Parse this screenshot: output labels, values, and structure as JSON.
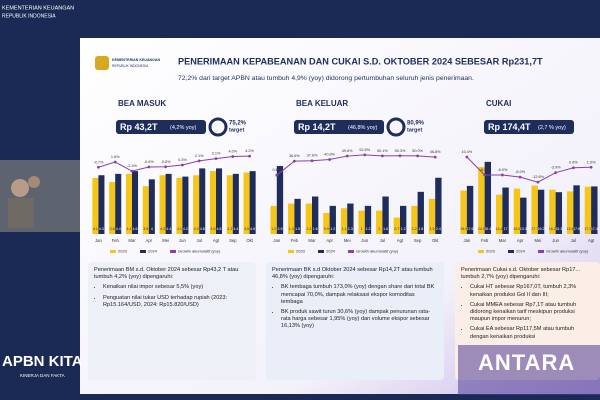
{
  "overlay": {
    "ministry": "KEMENTERIAN KEUANGAN",
    "republic": "REPUBLIK INDONESIA",
    "brand": "APBN KITA",
    "brand_sub": "KINERJA DAN FAKTA",
    "watermark": "ANTARA"
  },
  "header": {
    "logo_line1": "KEMENTERIAN KEUANGAN",
    "logo_line2": "REPUBLIK INDONESIA",
    "title": "PENERIMAAN KEPABEANAN DAN CUKAI S.D. OKTOBER 2024 SEBESAR Rp231,7T",
    "subtitle": "72,2% dari target APBN atau tumbuh 4,9% (yoy) didorong pertumbuhan seluruh jenis penerimaan."
  },
  "chart_data": [
    {
      "type": "bar",
      "title": "BEA MASUK",
      "headline": "Rp 43,2T",
      "growth": "(4,2% yoy)",
      "target": "75,2%",
      "target_label": "target",
      "categories": [
        "Jan",
        "Feb",
        "Mar",
        "Apr",
        "Mei",
        "Jun",
        "Jul",
        "Agt",
        "Sep",
        "Okt"
      ],
      "ylim": [
        0,
        6
      ],
      "y2lim": [
        -30,
        6
      ],
      "series": [
        {
          "name": "2023",
          "color": "#f5c518",
          "values": [
            4.1,
            3.8,
            4.4,
            3.5,
            4.3,
            4.1,
            4.3,
            4.6,
            4.3,
            4.5
          ]
        },
        {
          "name": "2024",
          "color": "#1f2d5c",
          "values": [
            4.3,
            4.4,
            4.6,
            4.0,
            4.4,
            4.2,
            4.8,
            4.8,
            4.4,
            4.6
          ]
        },
        {
          "name": "Growth akumulatif (yoy)",
          "color": "#8b3fa8",
          "axis": "y2",
          "values": [
            -0.7,
            1.6,
            -2.4,
            -0.6,
            -0.5,
            0.3,
            2.1,
            3.1,
            4.0,
            4.2
          ],
          "value_labels": [
            "-0.7%",
            "1.6%",
            "-2.4%",
            "-0.6%",
            "-0.5%",
            "0.3%",
            "2.1%",
            "3.1%",
            "4.0%",
            "4.2%"
          ]
        }
      ]
    },
    {
      "type": "bar",
      "title": "BEA KELUAR",
      "headline": "Rp 14,2T",
      "growth": "(46,8% yoy)",
      "target": "80,9%",
      "target_label": "target",
      "categories": [
        "Jan",
        "Feb",
        "Mar",
        "Apr",
        "Mei",
        "Jun",
        "Jul",
        "Agt",
        "Sep",
        "Okt"
      ],
      "ylim": [
        0,
        3.5
      ],
      "y2lim": [
        -150,
        60
      ],
      "series": [
        {
          "name": "2023",
          "color": "#f5c518",
          "values": [
            1.2,
            1.3,
            1.3,
            0.9,
            1.1,
            1.0,
            1.0,
            0.7,
            1.2,
            1.5
          ]
        },
        {
          "name": "2024",
          "color": "#1f2d5c",
          "values": [
            2.9,
            1.5,
            1.6,
            1.2,
            1.3,
            1.2,
            1.6,
            1.2,
            1.8,
            2.4
          ]
        },
        {
          "name": "Growth akumulatif (yoy)",
          "color": "#8b3fa8",
          "axis": "y2",
          "values": [
            0.6,
            36.6,
            37.6,
            40.8,
            49.6,
            52.6,
            50.1,
            50.3,
            50.0,
            46.8
          ],
          "value_labels": [
            "0.6%",
            "36.6%",
            "37.6%",
            "40.8%",
            "49.6%",
            "52.6%",
            "50.1%",
            "50.3%",
            "50.0%",
            "46.8%"
          ]
        }
      ]
    },
    {
      "type": "bar",
      "title": "CUKAI",
      "headline": "Rp 174,4T",
      "growth": "(2,7 % yoy)",
      "categories": [
        "Jan",
        "Feb",
        "Mar",
        "Apr",
        "Mei",
        "Jun",
        "Jul",
        "Agt"
      ],
      "ylim": [
        0,
        30
      ],
      "y2lim": [
        -60,
        15
      ],
      "series": [
        {
          "name": "2023",
          "color": "#f5c518",
          "values": [
            15.9,
            24.5,
            14.4,
            16.6,
            17.7,
            16.2,
            15.6,
            17.3
          ]
        },
        {
          "name": "2024",
          "color": "#1f2d5c",
          "values": [
            17.6,
            26.4,
            17.0,
            13.3,
            16.2,
            15.3,
            17.8,
            17.4
          ]
        },
        {
          "name": "Growth akumulatif (yoy)",
          "color": "#8b3fa8",
          "axis": "y2",
          "values": [
            10.4,
            -6.0,
            -6.0,
            -8.0,
            -12.6,
            -3.9,
            0.6,
            1.0
          ],
          "value_labels": [
            "10.4%",
            "-6.0%",
            "-6.0%",
            "-8.0%",
            "-12.6%",
            "-3.9%",
            "0.6%",
            "1.0%"
          ]
        }
      ]
    }
  ],
  "notes": [
    {
      "intro": "Penerimaan BM s.d. Oktober 2024 sebesar Rp43,2 T atau tumbuh 4,2% (yoy) dipengaruhi:",
      "bullets": [
        "Kenaikan nilai impor sebesar 5,5% (yoy)",
        "Penguatan nilai tukar USD terhadap rupiah (2023: Rp15.164/USD, 2024: Rp15.820/USD)"
      ]
    },
    {
      "intro": "Penerimaan BK s.d Oktober 2024 sebesar Rp14,2T atau tumbuh 46,8% (yoy) dipengaruhi:",
      "bullets": [
        "BK tembaga tumbuh 173,0% (yoy) dengan share dari total BK mencapai 70,0%, dampak relaksasi ekspor komoditas tembaga",
        "BK produk sawit turun 30,6% (yoy) dampak penurunan rata-rata harga sebesar 1,95% (yoy) dan volume ekspor sebesar 16,13% (yoy)"
      ]
    },
    {
      "intro": "Penerimaan Cukai s.d. Oktober sebesar Rp17... tumbuh 2,7% (yoy) dipengaruhi:",
      "bullets": [
        "Cukai HT sebesar Rp167,0T, tumbuh 2,3% kenaikan produksi Gol II dan III;",
        "Cukai MMEA sebesar Rp7,1T atau tumbuh didorong kenaikan tarif meskipun produksi maupun impor menurun;",
        "Cukai EA sebesar Rp117,5M atau tumbuh dengan kenaikan produksi"
      ]
    }
  ]
}
